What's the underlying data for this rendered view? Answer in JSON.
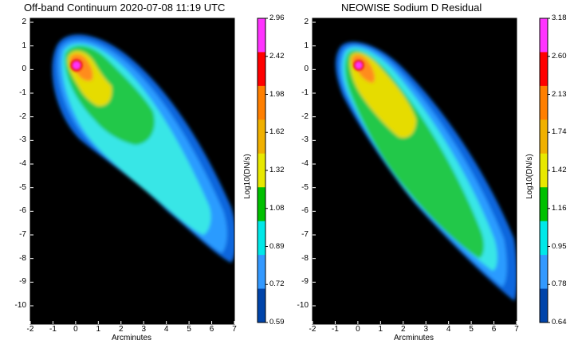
{
  "left_panel": {
    "title": "Off-band Continuum 2020-07-08 11:19 UTC",
    "x_axis_label": "Arcminutes",
    "y_ticks": [
      "2",
      "1",
      "0",
      "-1",
      "-2",
      "-3",
      "-4",
      "-5",
      "-6",
      "-7",
      "-8",
      "-9",
      "-10"
    ],
    "x_ticks": [
      "-2",
      "-1",
      "0",
      "1",
      "2",
      "3",
      "4",
      "5",
      "6",
      "7"
    ],
    "colorbar": {
      "label": "Log10(DN/s)",
      "values": [
        "2.96",
        "2.42",
        "1.98",
        "1.62",
        "1.32",
        "1.08",
        "0.89",
        "0.72",
        "0.59"
      ],
      "colors": [
        "#ff33ff",
        "#ff0000",
        "#ff7f00",
        "#f0b000",
        "#e8e800",
        "#00c000",
        "#00e8e8",
        "#3399ff",
        "#0044aa"
      ]
    }
  },
  "right_panel": {
    "title": "NEOWISE Sodium D Residual",
    "x_axis_label": "Arcminutes",
    "y_ticks": [
      "2",
      "1",
      "0",
      "-1",
      "-2",
      "-3",
      "-4",
      "-5",
      "-6",
      "-7",
      "-8",
      "-9",
      "-10"
    ],
    "x_ticks": [
      "-2",
      "-1",
      "0",
      "1",
      "2",
      "3",
      "4",
      "5",
      "6",
      "7"
    ],
    "colorbar": {
      "label": "Log10(DN/s)",
      "values": [
        "3.18",
        "2.60",
        "2.13",
        "1.74",
        "1.42",
        "1.16",
        "0.95",
        "0.78",
        "0.64"
      ],
      "colors": [
        "#ff33ff",
        "#ff0000",
        "#ff7f00",
        "#f0b000",
        "#e8e800",
        "#00c000",
        "#00e8e8",
        "#3399ff",
        "#0044aa"
      ]
    }
  }
}
